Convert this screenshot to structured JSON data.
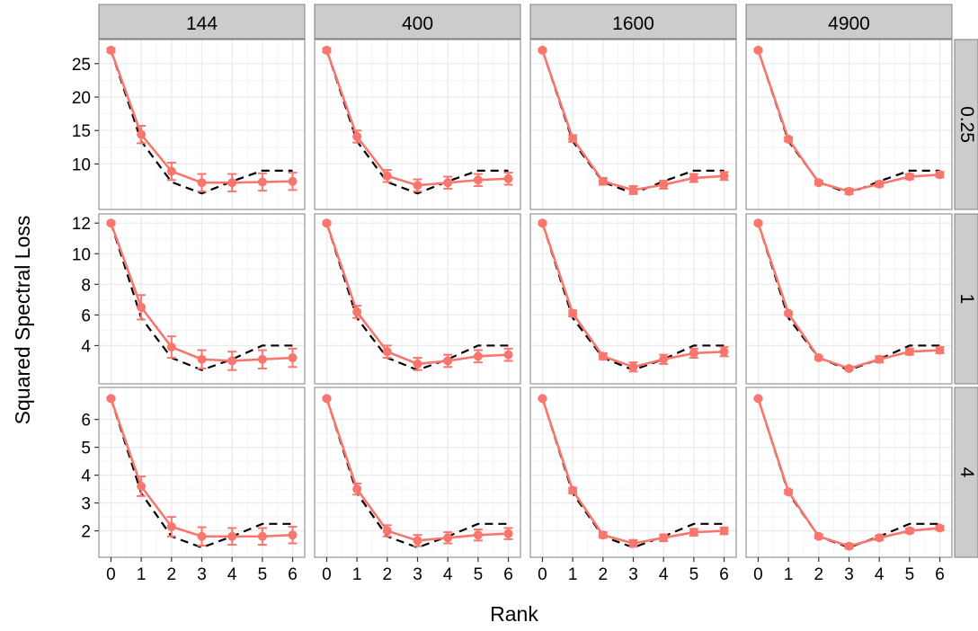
{
  "chart_data": {
    "type": "line",
    "ylabel": "Squared Spectral Loss",
    "xlabel": "Rank",
    "x": [
      0,
      1,
      2,
      3,
      4,
      5,
      6
    ],
    "xlim": [
      -0.4,
      6.4
    ],
    "column_strips": [
      "144",
      "400",
      "1600",
      "4900"
    ],
    "row_strips": [
      "0.25",
      "1",
      "4"
    ],
    "grid": true,
    "colors": {
      "estimate": "#f8766d",
      "reference": "#000000",
      "strip_fill": "#cccccc",
      "panel_fill": "#ffffff",
      "grid": "#ebebeb"
    },
    "rows": [
      {
        "row": "0.25",
        "ylim": [
          3.2,
          28.6
        ],
        "yticks": [
          10,
          15,
          20,
          25
        ],
        "reference": [
          27.0,
          13.4,
          7.3,
          5.6,
          7.4,
          9.0,
          9.0
        ],
        "panels": [
          {
            "column": "144",
            "estimate": [
              27.0,
              14.4,
              8.9,
              7.2,
              7.2,
              7.3,
              7.4
            ],
            "error": [
              0.3,
              1.3,
              1.3,
              1.3,
              1.3,
              1.3,
              1.3
            ]
          },
          {
            "column": "400",
            "estimate": [
              27.0,
              14.1,
              8.2,
              6.8,
              7.2,
              7.6,
              7.8
            ],
            "error": [
              0.3,
              0.9,
              0.9,
              0.9,
              0.9,
              0.9,
              0.9
            ]
          },
          {
            "column": "1600",
            "estimate": [
              27.0,
              13.8,
              7.4,
              6.1,
              6.9,
              7.9,
              8.2
            ],
            "error": [
              0.2,
              0.5,
              0.5,
              0.6,
              0.6,
              0.6,
              0.6
            ]
          },
          {
            "column": "4900",
            "estimate": [
              27.0,
              13.7,
              7.2,
              5.9,
              7.0,
              8.1,
              8.4
            ],
            "error": [
              0.2,
              0.3,
              0.3,
              0.4,
              0.4,
              0.4,
              0.4
            ]
          }
        ]
      },
      {
        "row": "1",
        "ylim": [
          1.5,
          12.6
        ],
        "yticks": [
          4,
          6,
          8,
          10,
          12
        ],
        "reference": [
          12.0,
          5.8,
          3.2,
          2.4,
          3.1,
          4.0,
          4.0
        ],
        "panels": [
          {
            "column": "144",
            "estimate": [
              12.0,
              6.5,
              3.9,
              3.1,
              3.0,
              3.1,
              3.2
            ],
            "error": [
              0.1,
              0.8,
              0.7,
              0.6,
              0.6,
              0.6,
              0.6
            ]
          },
          {
            "column": "400",
            "estimate": [
              12.0,
              6.2,
              3.6,
              2.8,
              3.0,
              3.3,
              3.4
            ],
            "error": [
              0.1,
              0.4,
              0.4,
              0.4,
              0.4,
              0.4,
              0.4
            ]
          },
          {
            "column": "1600",
            "estimate": [
              12.0,
              6.1,
              3.3,
              2.6,
              3.1,
              3.5,
              3.6
            ],
            "error": [
              0.1,
              0.2,
              0.2,
              0.3,
              0.3,
              0.3,
              0.3
            ]
          },
          {
            "column": "4900",
            "estimate": [
              12.0,
              6.1,
              3.2,
              2.5,
              3.1,
              3.6,
              3.7
            ],
            "error": [
              0.1,
              0.1,
              0.1,
              0.1,
              0.2,
              0.2,
              0.2
            ]
          }
        ]
      },
      {
        "row": "4",
        "ylim": [
          1.05,
          7.15
        ],
        "yticks": [
          2,
          3,
          4,
          5,
          6
        ],
        "reference": [
          6.75,
          3.35,
          1.8,
          1.4,
          1.8,
          2.25,
          2.25
        ],
        "panels": [
          {
            "column": "144",
            "estimate": [
              6.75,
              3.6,
              2.15,
              1.8,
              1.8,
              1.8,
              1.85
            ],
            "error": [
              0.05,
              0.35,
              0.35,
              0.33,
              0.3,
              0.3,
              0.3
            ]
          },
          {
            "column": "400",
            "estimate": [
              6.75,
              3.5,
              2.0,
              1.65,
              1.75,
              1.85,
              1.9
            ],
            "error": [
              0.05,
              0.2,
              0.2,
              0.2,
              0.2,
              0.2,
              0.2
            ]
          },
          {
            "column": "1600",
            "estimate": [
              6.75,
              3.45,
              1.85,
              1.55,
              1.75,
              1.95,
              2.0
            ],
            "error": [
              0.03,
              0.1,
              0.1,
              0.12,
              0.12,
              0.12,
              0.12
            ]
          },
          {
            "column": "4900",
            "estimate": [
              6.75,
              3.4,
              1.8,
              1.45,
              1.75,
              2.0,
              2.1
            ],
            "error": [
              0.03,
              0.07,
              0.07,
              0.08,
              0.08,
              0.08,
              0.08
            ]
          }
        ]
      }
    ]
  }
}
